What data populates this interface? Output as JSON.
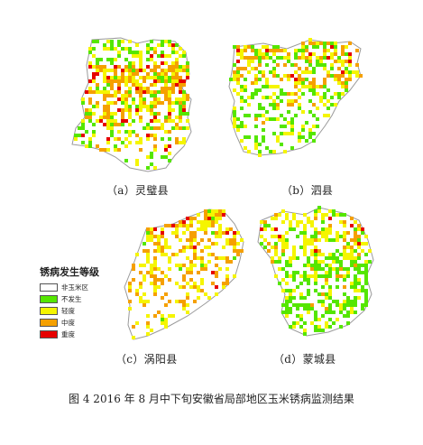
{
  "legend": {
    "title": "锈病发生等级",
    "items": [
      {
        "label": "非玉米区",
        "color": "#ffffff"
      },
      {
        "label": "不发生",
        "color": "#55e600"
      },
      {
        "label": "轻度",
        "color": "#f5f500"
      },
      {
        "label": "中度",
        "color": "#f5a000"
      },
      {
        "label": "重度",
        "color": "#e60000"
      }
    ]
  },
  "panels": [
    {
      "caption": "（a）灵璧县"
    },
    {
      "caption": "（b）泗县"
    },
    {
      "caption": "（c）涡阳县"
    },
    {
      "caption": "（d）蒙城县"
    }
  ],
  "figure_title": "图 4  2016 年 8 月中下旬安徽省局部地区玉米锈病监测结果"
}
